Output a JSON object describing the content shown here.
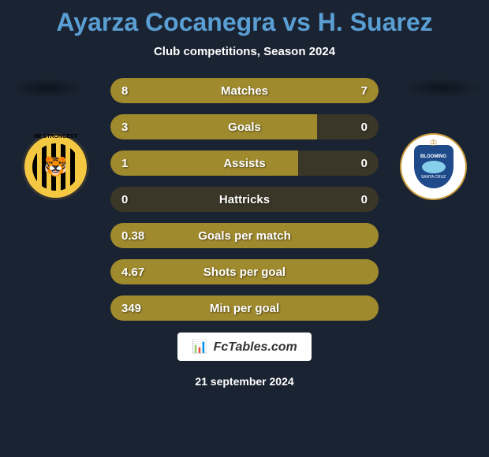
{
  "header": {
    "title": "Ayarza Cocanegra vs H. Suarez",
    "subtitle": "Club competitions, Season 2024"
  },
  "colors": {
    "background": "#1a2332",
    "title_color": "#5a9fd4",
    "bar_background": "#3a3628",
    "bar_fill": "#a08a2e",
    "text": "#ffffff"
  },
  "player_left": {
    "badge_label": "HE STRONGEST",
    "badge_emoji": "🐯"
  },
  "player_right": {
    "badge_text1": "BLOOMING",
    "badge_text2": "SANTA CRUZ"
  },
  "stats": [
    {
      "label": "Matches",
      "left_value": "8",
      "right_value": "7",
      "left_fill_pct": 53,
      "right_fill_pct": 47
    },
    {
      "label": "Goals",
      "left_value": "3",
      "right_value": "0",
      "left_fill_pct": 77,
      "right_fill_pct": 0
    },
    {
      "label": "Assists",
      "left_value": "1",
      "right_value": "0",
      "left_fill_pct": 70,
      "right_fill_pct": 0
    },
    {
      "label": "Hattricks",
      "left_value": "0",
      "right_value": "0",
      "left_fill_pct": 0,
      "right_fill_pct": 0
    },
    {
      "label": "Goals per match",
      "left_value": "0.38",
      "right_value": "",
      "left_fill_pct": 100,
      "right_fill_pct": 0
    },
    {
      "label": "Shots per goal",
      "left_value": "4.67",
      "right_value": "",
      "left_fill_pct": 100,
      "right_fill_pct": 0
    },
    {
      "label": "Min per goal",
      "left_value": "349",
      "right_value": "",
      "left_fill_pct": 100,
      "right_fill_pct": 0
    }
  ],
  "footer": {
    "logo_text": "FcTables.com",
    "date": "21 september 2024"
  }
}
